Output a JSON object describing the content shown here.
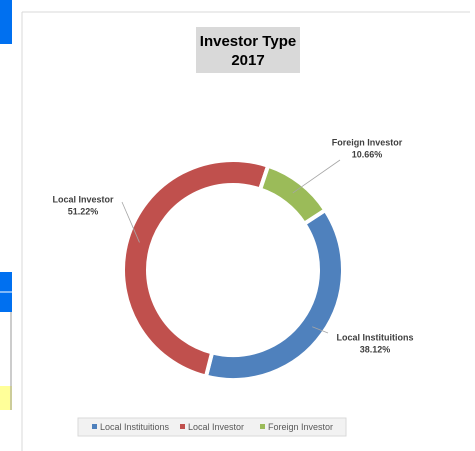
{
  "chart_data": {
    "type": "donut",
    "title": "Investor Type",
    "subtitle": "2017",
    "categories": [
      "Local Instituitions",
      "Local Investor",
      "Foreign Investor"
    ],
    "series": [
      {
        "name": "Investor Type",
        "values": [
          38.12,
          51.22,
          10.66
        ],
        "value_labels": [
          "38.12%",
          "51.22%",
          "10.66%"
        ]
      }
    ],
    "colors": [
      "#4f81bd",
      "#c0504d",
      "#9bbb59"
    ],
    "legend": "bottom"
  }
}
